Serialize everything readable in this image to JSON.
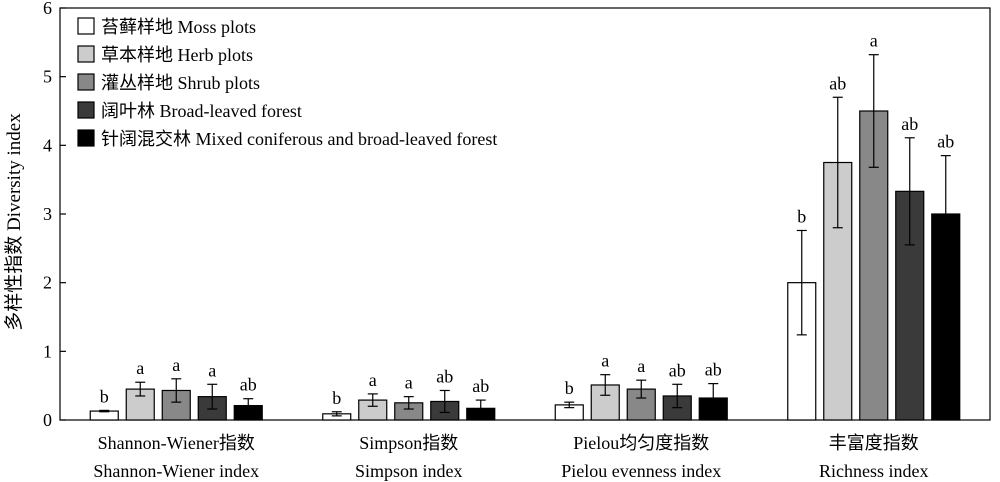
{
  "chart_data": {
    "type": "bar",
    "ylabel": "多样性指数 Diversity index",
    "ylim": [
      0,
      6
    ],
    "yticks": [
      0,
      1,
      2,
      3,
      4,
      5,
      6
    ],
    "grid": false,
    "legend_position": "top-left",
    "categories": [
      {
        "line1": "Shannon-Wiener指数",
        "line2": "Shannon-Wiener index"
      },
      {
        "line1": "Simpson指数",
        "line2": "Simpson index"
      },
      {
        "line1": "Pielou均匀度指数",
        "line2": "Pielou evenness index"
      },
      {
        "line1": "丰富度指数",
        "line2": "Richness index"
      }
    ],
    "series": [
      {
        "name": "苔藓样地 Moss plots",
        "color": "#ffffff",
        "values": [
          0.13,
          0.09,
          0.22,
          2.0
        ],
        "errors": [
          0.01,
          0.03,
          0.04,
          0.76
        ],
        "labels": [
          "b",
          "b",
          "b",
          "b"
        ]
      },
      {
        "name": "草本样地 Herb plots",
        "color": "#cccccc",
        "values": [
          0.45,
          0.29,
          0.51,
          3.75
        ],
        "errors": [
          0.1,
          0.09,
          0.15,
          0.95
        ],
        "labels": [
          "a",
          "a",
          "a",
          "ab"
        ]
      },
      {
        "name": "灌丛样地 Shrub plots",
        "color": "#888888",
        "values": [
          0.43,
          0.25,
          0.45,
          4.5
        ],
        "errors": [
          0.17,
          0.09,
          0.13,
          0.82
        ],
        "labels": [
          "a",
          "a",
          "a",
          "a"
        ]
      },
      {
        "name": "阔叶林 Broad-leaved forest",
        "color": "#3a3a3a",
        "values": [
          0.34,
          0.27,
          0.35,
          3.33
        ],
        "errors": [
          0.18,
          0.16,
          0.17,
          0.78
        ],
        "labels": [
          "a",
          "ab",
          "ab",
          "ab"
        ]
      },
      {
        "name": "针阔混交林 Mixed coniferous and broad-leaved forest",
        "color": "#000000",
        "values": [
          0.21,
          0.17,
          0.32,
          3.0
        ],
        "errors": [
          0.1,
          0.12,
          0.21,
          0.85
        ],
        "labels": [
          "ab",
          "ab",
          "ab",
          "ab"
        ]
      }
    ]
  }
}
